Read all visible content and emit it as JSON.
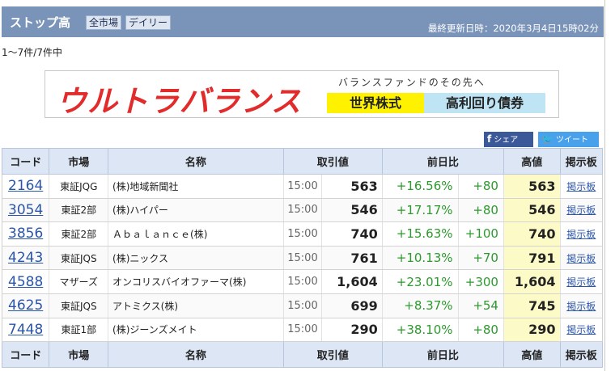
{
  "header": {
    "title": "ストップ高",
    "filter_market": "全市場",
    "filter_period": "デイリー",
    "updated": "最終更新日時：2020年3月4日15時02分"
  },
  "result_count": "1〜7件/7件中",
  "banner": {
    "logo": "ウルトラバランス",
    "tagline": "バランスファンドのその先へ",
    "box1": "世界株式",
    "box2": "高利回り債券"
  },
  "share": {
    "facebook": "シェア",
    "twitter": "ツイート"
  },
  "table": {
    "columns": {
      "code": "コード",
      "market": "市場",
      "name": "名称",
      "price": "取引値",
      "change": "前日比",
      "high": "高値",
      "board": "掲示板"
    },
    "rows": [
      {
        "code": "2164",
        "market": "東証JQG",
        "name": "(株)地域新聞社",
        "time": "15:00",
        "price": "563",
        "pct": "+16.56%",
        "diff": "+80",
        "high": "563",
        "board": "掲示板"
      },
      {
        "code": "3054",
        "market": "東証2部",
        "name": "(株)ハイパー",
        "time": "15:00",
        "price": "546",
        "pct": "+17.17%",
        "diff": "+80",
        "high": "546",
        "board": "掲示板"
      },
      {
        "code": "3856",
        "market": "東証2部",
        "name": "Ａｂａｌａｎｃｅ(株)",
        "time": "15:00",
        "price": "740",
        "pct": "+15.63%",
        "diff": "+100",
        "high": "740",
        "board": "掲示板"
      },
      {
        "code": "4243",
        "market": "東証JQS",
        "name": "(株)ニックス",
        "time": "15:00",
        "price": "761",
        "pct": "+10.13%",
        "diff": "+70",
        "high": "791",
        "board": "掲示板"
      },
      {
        "code": "4588",
        "market": "マザーズ",
        "name": "オンコリスバイオファーマ(株)",
        "time": "15:00",
        "price": "1,604",
        "pct": "+23.01%",
        "diff": "+300",
        "high": "1,604",
        "board": "掲示板"
      },
      {
        "code": "4625",
        "market": "東証JQS",
        "name": "アトミクス(株)",
        "time": "15:00",
        "price": "699",
        "pct": "+8.37%",
        "diff": "+54",
        "high": "745",
        "board": "掲示板"
      },
      {
        "code": "7448",
        "market": "東証1部",
        "name": "(株)ジーンズメイト",
        "time": "15:00",
        "price": "290",
        "pct": "+38.10%",
        "diff": "+80",
        "high": "290",
        "board": "掲示板"
      }
    ]
  }
}
